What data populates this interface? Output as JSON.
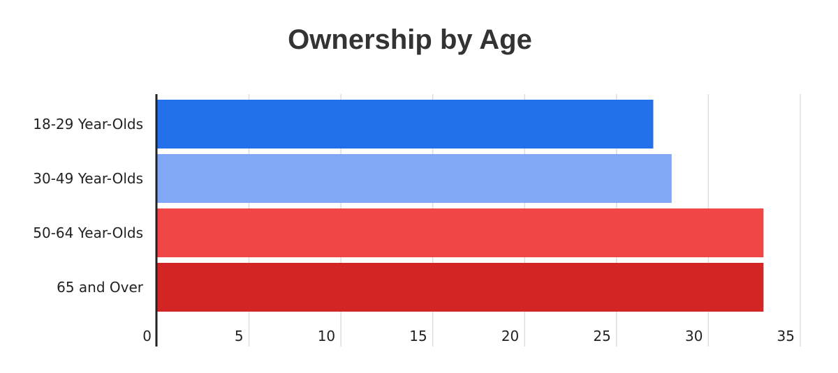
{
  "chart_data": {
    "type": "bar",
    "orientation": "horizontal",
    "title": "Ownership by Age",
    "xlabel": "",
    "ylabel": "",
    "categories": [
      "18-29 Year-Olds",
      "30-49 Year-Olds",
      "50-64 Year-Olds",
      "65 and Over"
    ],
    "values": [
      27,
      28,
      33,
      33
    ],
    "colors": [
      "#2271ea",
      "#81a8f6",
      "#f04646",
      "#d42525"
    ],
    "xlim": [
      0,
      35
    ],
    "xticks": [
      0,
      5,
      10,
      15,
      20,
      25,
      30,
      35
    ],
    "grid": true,
    "legend": "none"
  }
}
